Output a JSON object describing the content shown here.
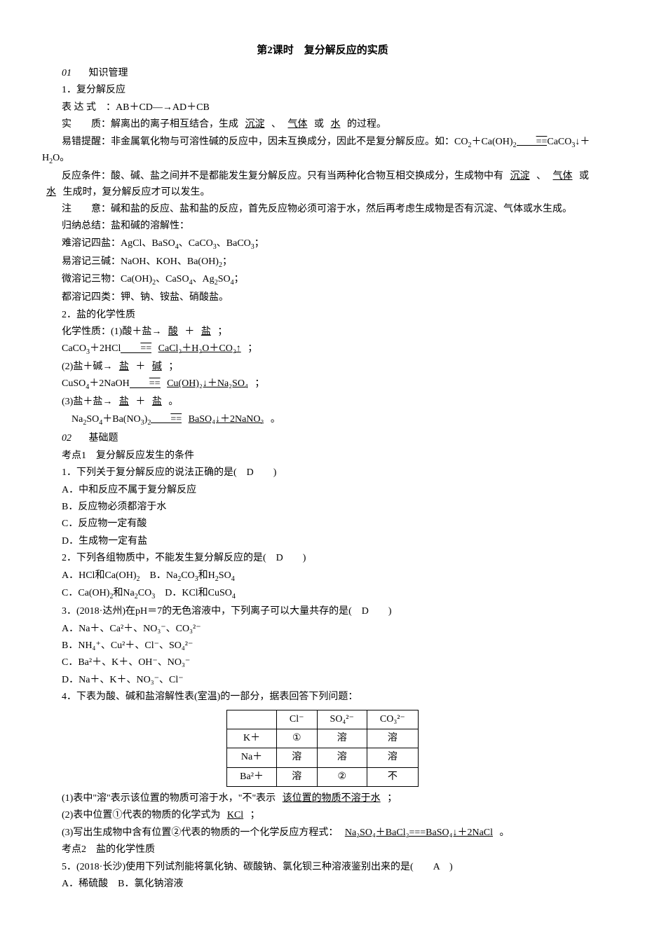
{
  "title": "第2课时　复分解反应的实质",
  "section01": {
    "num": "01",
    "label": "知识管理"
  },
  "k1": {
    "heading": "1．复分解反应",
    "expr_label": "表 达 式　：AB＋CD―→AD＋CB",
    "essence_label": "实　　质：解离出的离子相互结合，生成",
    "essence_blank1": "沉淀",
    "essence_sep1": "、",
    "essence_blank2": "气体",
    "essence_sep2": "或",
    "essence_blank3": "水",
    "essence_tail": "的过程。",
    "warn_pre": "易错提醒：非金属氧化物与可溶性碱的反应中，因未互换成分，因此不是复分解反应。如：CO",
    "warn_tail": "O。",
    "cond_pre": "反应条件：酸、碱、盐之间并不是都能发生复分解反应。只有当两种化合物互相交换成分，生成物中有",
    "cond_blank1": "沉淀",
    "cond_sep1": "、",
    "cond_blank2": "气体",
    "cond_sep2": "或",
    "cond_blank3": "水",
    "cond_tail": "生成时，复分解反应才可以发生。",
    "note": "注　　意：碱和盐的反应、盐和盐的反应，首先反应物必须可溶于水，然后再考虑生成物是否有沉淀、气体或水生成。",
    "summary_head": "归纳总结：盐和碱的溶解性：",
    "line1_pre": "难溶记四盐：AgCl、BaSO",
    "line1_mid": "、CaCO",
    "line1_mid2": "、BaCO",
    "line1_tail": "；",
    "line2_pre": "易溶记三碱：NaOH、KOH、Ba(OH)",
    "line2_tail": "；",
    "line3_pre": "微溶记三物：Ca(OH)",
    "line3_mid": "、CaSO",
    "line3_mid2": "、Ag",
    "line3_mid3": "SO",
    "line3_tail": "；",
    "line4": "都溶记四类：钾、钠、铵盐、硝酸盐。"
  },
  "k2": {
    "heading": "2．盐的化学性质",
    "prop_head": "化学性质：(1)酸＋盐→",
    "blank_acid": "酸",
    "plus": "＋",
    "blank_salt": "盐",
    "semi": "；",
    "eq1_pre": "CaCO",
    "eq1_mid": "＋2HCl",
    "eq1_blank": "CaCl₂＋H₂O＋CO₂↑",
    "eq1_tail": "；",
    "prop2_head": "(2)盐＋碱→",
    "blank_salt2": "盐",
    "blank_base": "碱",
    "eq2_pre": "CuSO",
    "eq2_mid": "＋2NaOH",
    "eq2_blank": "Cu(OH)₂↓＋Na₂SO₄",
    "eq2_tail": "；",
    "prop3_head": "(3)盐＋盐→",
    "blank_salt3a": "盐",
    "blank_salt3b": "盐",
    "period": "。",
    "eq3_pre": "　Na",
    "eq3_mid1": "SO",
    "eq3_mid2": "＋Ba(NO",
    "eq3_mid3": ")",
    "eq3_blank": "BaSO₄↓＋2NaNO₃",
    "eq3_tail": "。"
  },
  "section02": {
    "num": "02",
    "label": "基础题"
  },
  "kp1": {
    "heading": "考点1　复分解反应发生的条件",
    "q1": {
      "stem": "1．下列关于复分解反应的说法正确的是(",
      "ans": "D",
      "close": ")",
      "a": "A．中和反应不属于复分解反应",
      "b": "B．反应物必须都溶于水",
      "c": "C．反应物一定有酸",
      "d": "D．生成物一定有盐"
    },
    "q2": {
      "stem": "2．下列各组物质中，不能发生复分解反应的是(",
      "ans": "D",
      "close": ")",
      "a_pre": "A．HCl和Ca(OH)",
      "a_mid": "　B．Na",
      "a_mid2": "CO",
      "a_mid3": "和H",
      "a_mid4": "SO",
      "c_pre": "C．Ca(OH)",
      "c_mid": "和Na",
      "c_mid2": "CO",
      "c_mid3": "　D．KCl和CuSO"
    },
    "q3": {
      "stem": "3．(2018·达州)在pH＝7的无色溶液中，下列离子可以大量共存的是(",
      "ans": "D",
      "close": ")",
      "a": "A．Na＋、Ca²＋、NO₃⁻、CO₃²⁻",
      "b": "B．NH₄⁺、Cu²＋、Cl⁻、SO₄²⁻",
      "c": "C．Ba²＋、K＋、OH⁻、NO₃⁻",
      "d": "D．Na＋、K＋、NO₃⁻、Cl⁻"
    },
    "q4": {
      "stem": "4．下表为酸、碱和盐溶解性表(室温)的一部分，据表回答下列问题："
    },
    "table": {
      "headers": [
        "",
        "Cl⁻",
        "SO₄²⁻",
        "CO₃²⁻"
      ],
      "rows": [
        [
          "K＋",
          "①",
          "溶",
          "溶"
        ],
        [
          "Na＋",
          "溶",
          "溶",
          "溶"
        ],
        [
          "Ba²＋",
          "溶",
          "②",
          "不"
        ]
      ]
    },
    "q4_1_pre": "(1)表中\"溶\"表示该位置的物质可溶于水，\"不\"表示",
    "q4_1_blank": "该位置的物质不溶于水",
    "q4_1_tail": "；",
    "q4_2_pre": "(2)表中位置①代表的物质的化学式为",
    "q4_2_blank": "KCl",
    "q4_2_tail": "；",
    "q4_3_pre": "(3)写出生成物中含有位置②代表的物质的一个化学反应方程式：",
    "q4_3_blank": "Na₂SO₄＋BaCl₂===BaSO₄↓＋2NaCl",
    "q4_3_tail": "。"
  },
  "kp2": {
    "heading": "考点2　盐的化学性质",
    "q5": {
      "stem": "5．(2018·长沙)使用下列试剂能将氯化钠、碳酸钠、氯化钡三种溶液鉴别出来的是(",
      "ans": "A",
      "close": ")",
      "a": "A．稀硫酸　B．氯化钠溶液"
    }
  }
}
